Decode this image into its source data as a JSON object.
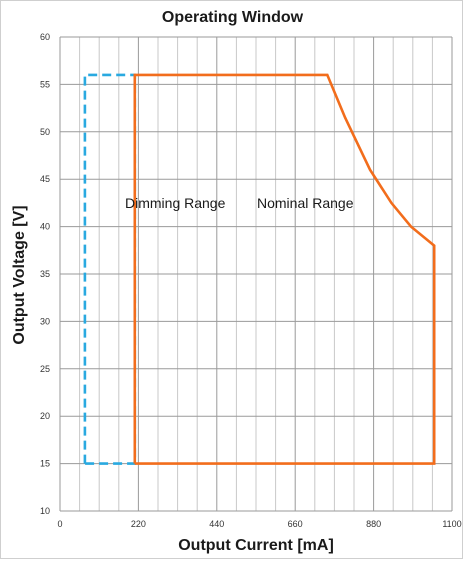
{
  "chart_data": {
    "type": "line",
    "title": "Operating Window",
    "xlabel": "Output Current [mA]",
    "ylabel": "Output Voltage [V]",
    "xlim": [
      0,
      1100
    ],
    "ylim": [
      10,
      60
    ],
    "x_ticks": [
      0,
      220,
      440,
      660,
      880,
      1100
    ],
    "y_ticks": [
      10,
      15,
      20,
      25,
      30,
      35,
      40,
      45,
      50,
      55,
      60
    ],
    "grid": true,
    "annotations": [
      "Dimming Range",
      "Nominal Range"
    ],
    "series": [
      {
        "color": "#29a9e0",
        "style": "dashed",
        "points": [
          [
            70,
            15
          ],
          [
            70,
            56
          ],
          [
            210,
            56
          ],
          [
            210,
            15
          ],
          [
            70,
            15
          ]
        ]
      },
      {
        "color": "#f26d1c",
        "style": "solid",
        "points": [
          [
            210,
            15
          ],
          [
            210,
            56
          ],
          [
            750,
            56
          ],
          [
            800,
            51.5
          ],
          [
            870,
            46
          ],
          [
            930,
            42.5
          ],
          [
            985,
            40
          ],
          [
            1050,
            38
          ],
          [
            1050,
            15
          ],
          [
            210,
            15
          ]
        ]
      }
    ]
  }
}
